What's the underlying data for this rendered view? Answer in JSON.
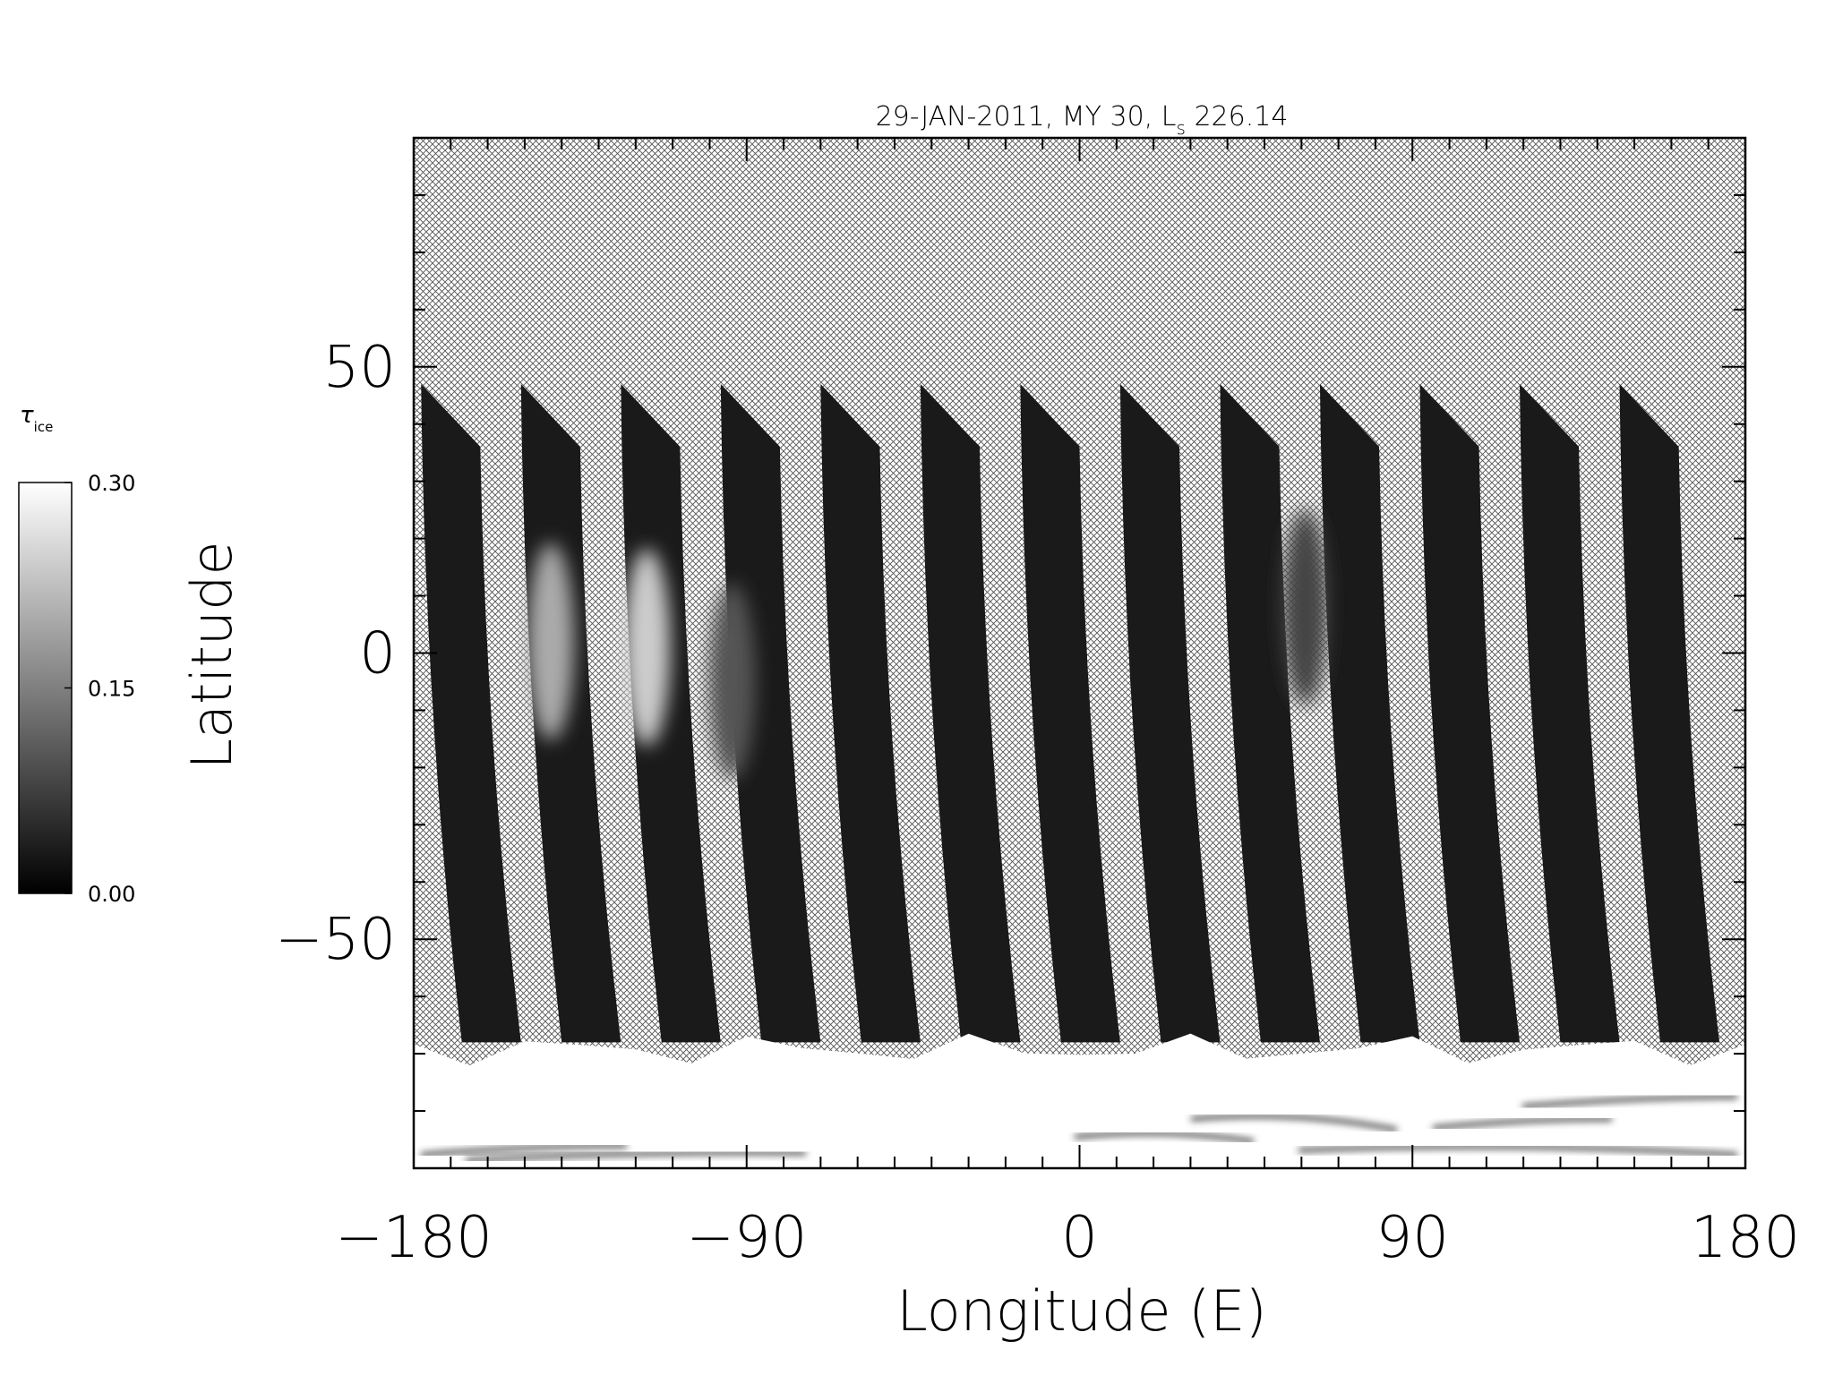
{
  "chart_data": {
    "type": "heatmap",
    "title": {
      "prefix": "29-JAN-2011, MY 30,  L",
      "subscript": "s",
      "suffix": " 226.14"
    },
    "xlabel": "Longitude (E)",
    "ylabel": "Latitude",
    "xlim": [
      -180,
      180
    ],
    "ylim": [
      -90,
      90
    ],
    "xticks": [
      {
        "value": -180,
        "label": "−180"
      },
      {
        "value": -90,
        "label": "−90"
      },
      {
        "value": 0,
        "label": "0"
      },
      {
        "value": 90,
        "label": "90"
      },
      {
        "value": 180,
        "label": "180"
      }
    ],
    "yticks": [
      {
        "value": -50,
        "label": "−50"
      },
      {
        "value": 0,
        "label": "0"
      },
      {
        "value": 50,
        "label": "50"
      }
    ],
    "x_minor_step": 10,
    "y_minor_step": 10,
    "colorbar": {
      "symbol": "τ",
      "subscript": "ice",
      "min": 0.0,
      "max": 0.3,
      "ticks": [
        {
          "value": 0.3,
          "label": "0.30"
        },
        {
          "value": 0.15,
          "label": "0.15"
        },
        {
          "value": 0.0,
          "label": "0.00"
        }
      ],
      "colormap": "grayscale (black to white)"
    },
    "no_data_fill": "cross-hatched",
    "swaths": [
      {
        "lon_top_left": -178,
        "lon_bottom_left": -167,
        "lat_top": 47,
        "lat_bottom": -68
      },
      {
        "lon_top_left": -151,
        "lon_bottom_left": -140,
        "lat_top": 47,
        "lat_bottom": -68
      },
      {
        "lon_top_left": -124,
        "lon_bottom_left": -113,
        "lat_top": 47,
        "lat_bottom": -68
      },
      {
        "lon_top_left": -97,
        "lon_bottom_left": -86,
        "lat_top": 47,
        "lat_bottom": -68
      },
      {
        "lon_top_left": -70,
        "lon_bottom_left": -59,
        "lat_top": 47,
        "lat_bottom": -68
      },
      {
        "lon_top_left": -43,
        "lon_bottom_left": -32,
        "lat_top": 47,
        "lat_bottom": -68
      },
      {
        "lon_top_left": -16,
        "lon_bottom_left": -5,
        "lat_top": 47,
        "lat_bottom": -68
      },
      {
        "lon_top_left": 11,
        "lon_bottom_left": 22,
        "lat_top": 47,
        "lat_bottom": -68
      },
      {
        "lon_top_left": 38,
        "lon_bottom_left": 49,
        "lat_top": 47,
        "lat_bottom": -68
      },
      {
        "lon_top_left": 65,
        "lon_bottom_left": 76,
        "lat_top": 47,
        "lat_bottom": -68
      },
      {
        "lon_top_left": 92,
        "lon_bottom_left": 103,
        "lat_top": 47,
        "lat_bottom": -68
      },
      {
        "lon_top_left": 119,
        "lon_bottom_left": 130,
        "lat_top": 47,
        "lat_bottom": -68
      },
      {
        "lon_top_left": 146,
        "lon_bottom_left": 157,
        "lat_top": 47,
        "lat_bottom": -68
      }
    ],
    "swath_width_deg": 16,
    "swath_tau_ice_typical": 0.03,
    "bright_patches": [
      {
        "lon": -143,
        "lat": 2,
        "tau_ice": 0.2
      },
      {
        "lon": -117,
        "lat": 1,
        "tau_ice": 0.24
      },
      {
        "lon": -94,
        "lat": -5,
        "tau_ice": 0.1
      },
      {
        "lon": 61,
        "lat": 8,
        "tau_ice": 0.08
      }
    ],
    "south_polar_band": {
      "lat_top": -68,
      "lat_bottom": -90,
      "tau_ice": 0.3
    }
  }
}
